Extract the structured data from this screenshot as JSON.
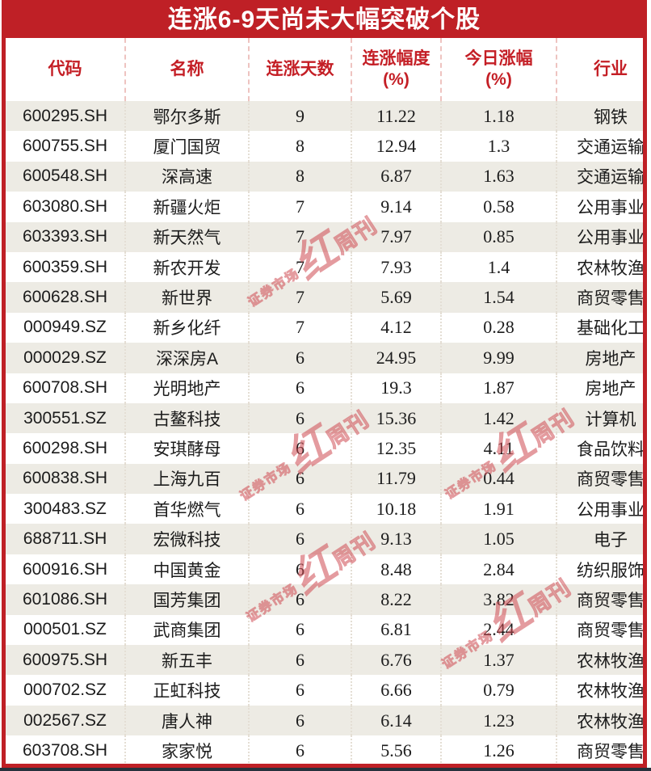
{
  "title": "连涨6-9天尚未大幅突破个股",
  "watermark": {
    "prefix": "证券市场",
    "highlight": "红",
    "suffix": "周刊"
  },
  "colors": {
    "accent_red": "#bf2026",
    "banner_text": "#ffffff",
    "header_text": "#c41e25",
    "row_alt_bg": "#edebe4",
    "row_bg": "#ffffff",
    "cell_text": "#1c1c1c",
    "watermark_red": "#cf4a52",
    "bottom_line": "#26313c"
  },
  "table": {
    "columns": [
      {
        "line1": "代码",
        "line2": ""
      },
      {
        "line1": "名称",
        "line2": ""
      },
      {
        "line1": "连涨天数",
        "line2": ""
      },
      {
        "line1": "连涨幅度",
        "line2": "(%)"
      },
      {
        "line1": "今日涨幅",
        "line2": "(%)"
      },
      {
        "line1": "行业",
        "line2": ""
      }
    ]
  },
  "chart_data": {
    "type": "table",
    "title": "连涨6-9天尚未大幅突破个股",
    "columns": [
      "代码",
      "名称",
      "连涨天数",
      "连涨幅度(%)",
      "今日涨幅(%)",
      "行业"
    ],
    "rows": [
      [
        "600295.SH",
        "鄂尔多斯",
        "9",
        "11.22",
        "1.18",
        "钢铁"
      ],
      [
        "600755.SH",
        "厦门国贸",
        "8",
        "12.94",
        "1.3",
        "交通运输"
      ],
      [
        "600548.SH",
        "深高速",
        "8",
        "6.87",
        "1.63",
        "交通运输"
      ],
      [
        "603080.SH",
        "新疆火炬",
        "7",
        "9.14",
        "0.58",
        "公用事业"
      ],
      [
        "603393.SH",
        "新天然气",
        "7",
        "7.97",
        "0.85",
        "公用事业"
      ],
      [
        "600359.SH",
        "新农开发",
        "7",
        "7.93",
        "1.4",
        "农林牧渔"
      ],
      [
        "600628.SH",
        "新世界",
        "7",
        "5.69",
        "1.54",
        "商贸零售"
      ],
      [
        "000949.SZ",
        "新乡化纤",
        "7",
        "4.12",
        "0.28",
        "基础化工"
      ],
      [
        "000029.SZ",
        "深深房A",
        "6",
        "24.95",
        "9.99",
        "房地产"
      ],
      [
        "600708.SH",
        "光明地产",
        "6",
        "19.3",
        "1.87",
        "房地产"
      ],
      [
        "300551.SZ",
        "古鳌科技",
        "6",
        "15.36",
        "1.42",
        "计算机"
      ],
      [
        "600298.SH",
        "安琪酵母",
        "6",
        "12.35",
        "4.11",
        "食品饮料"
      ],
      [
        "600838.SH",
        "上海九百",
        "6",
        "11.79",
        "0.44",
        "商贸零售"
      ],
      [
        "300483.SZ",
        "首华燃气",
        "6",
        "10.18",
        "1.91",
        "公用事业"
      ],
      [
        "688711.SH",
        "宏微科技",
        "6",
        "9.13",
        "1.05",
        "电子"
      ],
      [
        "600916.SH",
        "中国黄金",
        "6",
        "8.48",
        "2.84",
        "纺织服饰"
      ],
      [
        "601086.SH",
        "国芳集团",
        "6",
        "8.22",
        "3.82",
        "商贸零售"
      ],
      [
        "000501.SZ",
        "武商集团",
        "6",
        "6.81",
        "2.44",
        "商贸零售"
      ],
      [
        "600975.SH",
        "新五丰",
        "6",
        "6.76",
        "1.37",
        "农林牧渔"
      ],
      [
        "000702.SZ",
        "正虹科技",
        "6",
        "6.66",
        "0.79",
        "农林牧渔"
      ],
      [
        "002567.SZ",
        "唐人神",
        "6",
        "6.14",
        "1.23",
        "农林牧渔"
      ],
      [
        "603708.SH",
        "家家悦",
        "6",
        "5.56",
        "1.26",
        "商贸零售"
      ]
    ]
  }
}
